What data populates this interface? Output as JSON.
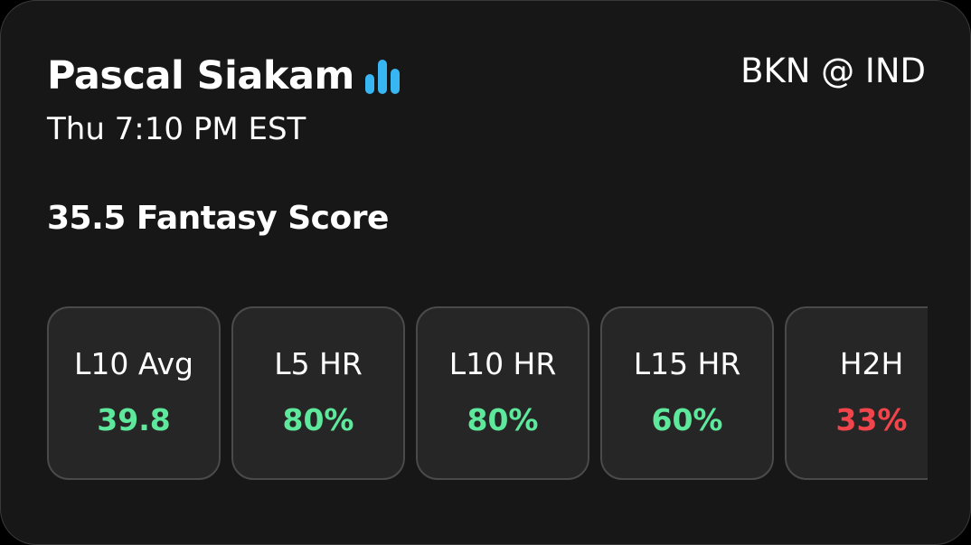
{
  "player": {
    "name": "Pascal Siakam",
    "icon": "bar-chart-icon",
    "icon_color": "#38b6f4"
  },
  "game": {
    "time": "Thu 7:10 PM EST",
    "matchup": "BKN @ IND"
  },
  "line": {
    "label": "35.5 Fantasy Score"
  },
  "colors": {
    "positive": "#5ee89c",
    "negative": "#f2444b",
    "card_background": "#171717",
    "tile_background": "#262626"
  },
  "stats": [
    {
      "label": "L10 Avg",
      "value": "39.8",
      "status": "positive"
    },
    {
      "label": "L5 HR",
      "value": "80%",
      "status": "positive"
    },
    {
      "label": "L10 HR",
      "value": "80%",
      "status": "positive"
    },
    {
      "label": "L15 HR",
      "value": "60%",
      "status": "positive"
    },
    {
      "label": "H2H",
      "value": "33%",
      "status": "negative"
    }
  ]
}
